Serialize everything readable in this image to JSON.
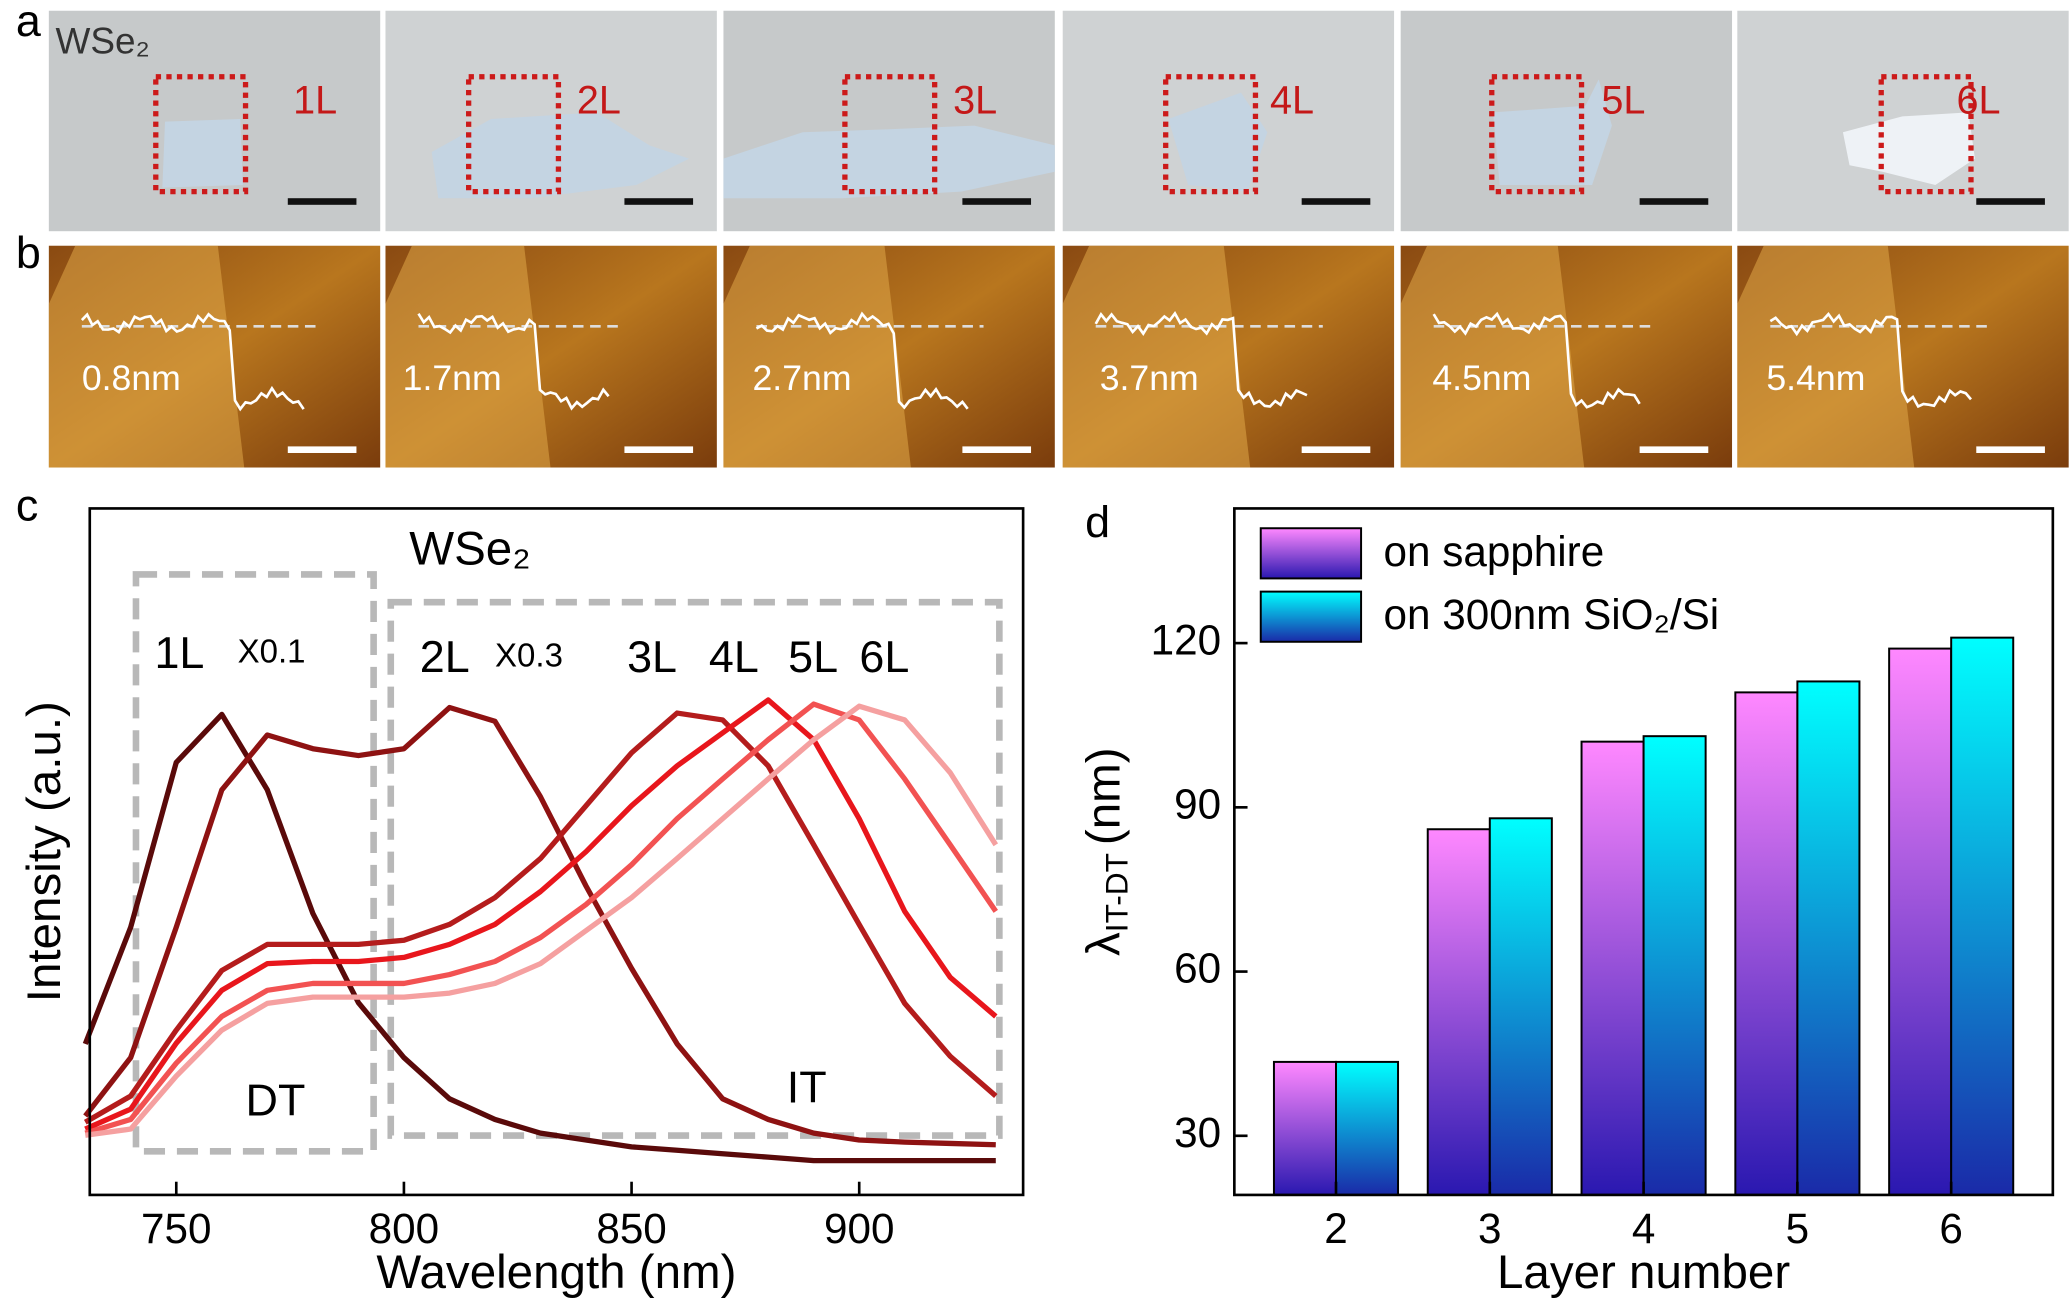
{
  "panel_labels": [
    "a",
    "b",
    "c",
    "d"
  ],
  "optical": {
    "material": "WSe₂",
    "layers": [
      "1L",
      "2L",
      "3L",
      "4L",
      "5L",
      "6L"
    ]
  },
  "afm": {
    "heights": [
      "0.8nm",
      "1.7nm",
      "2.7nm",
      "3.7nm",
      "4.5nm",
      "5.4nm"
    ]
  },
  "chart_data": [
    {
      "type": "line",
      "title": "WSe₂",
      "x_label": "Wavelength (nm)",
      "y_label": "Intensity (a.u.)",
      "x": [
        730,
        740,
        750,
        760,
        770,
        780,
        790,
        800,
        810,
        820,
        830,
        840,
        850,
        860,
        870,
        880,
        890,
        900,
        910,
        920,
        930
      ],
      "xlim": [
        731,
        936
      ],
      "xticks": [
        750,
        800,
        850,
        900
      ],
      "ylim": [
        0,
        1
      ],
      "series": [
        {
          "name": "1L",
          "color": "#5a0a0a",
          "values": [
            0.22,
            0.39,
            0.63,
            0.7,
            0.59,
            0.41,
            0.28,
            0.2,
            0.14,
            0.11,
            0.09,
            0.08,
            0.07,
            0.065,
            0.06,
            0.055,
            0.05,
            0.05,
            0.05,
            0.05,
            0.05
          ]
        },
        {
          "name": "2L",
          "color": "#8e1212",
          "values": [
            0.115,
            0.2,
            0.39,
            0.59,
            0.67,
            0.65,
            0.64,
            0.65,
            0.71,
            0.69,
            0.58,
            0.45,
            0.33,
            0.22,
            0.14,
            0.11,
            0.09,
            0.08,
            0.077,
            0.075,
            0.073
          ]
        },
        {
          "name": "3L",
          "color": "#b41c1c",
          "values": [
            0.106,
            0.144,
            0.24,
            0.327,
            0.365,
            0.365,
            0.365,
            0.371,
            0.394,
            0.433,
            0.49,
            0.567,
            0.644,
            0.702,
            0.692,
            0.625,
            0.51,
            0.394,
            0.279,
            0.202,
            0.144
          ]
        },
        {
          "name": "4L",
          "color": "#e8161c",
          "values": [
            0.096,
            0.125,
            0.221,
            0.298,
            0.337,
            0.34,
            0.34,
            0.346,
            0.365,
            0.394,
            0.442,
            0.5,
            0.567,
            0.625,
            0.673,
            0.721,
            0.663,
            0.548,
            0.413,
            0.317,
            0.26
          ]
        },
        {
          "name": "5L",
          "color": "#f25252",
          "values": [
            0.09,
            0.11,
            0.192,
            0.26,
            0.298,
            0.308,
            0.308,
            0.308,
            0.321,
            0.34,
            0.375,
            0.423,
            0.481,
            0.548,
            0.606,
            0.663,
            0.715,
            0.692,
            0.606,
            0.51,
            0.413
          ]
        },
        {
          "name": "6L",
          "color": "#f5a0a0",
          "values": [
            0.087,
            0.096,
            0.173,
            0.24,
            0.279,
            0.288,
            0.288,
            0.288,
            0.294,
            0.308,
            0.337,
            0.385,
            0.433,
            0.49,
            0.548,
            0.606,
            0.663,
            0.712,
            0.692,
            0.615,
            0.51
          ]
        }
      ],
      "annotations": {
        "scale_1L": "X0.1",
        "scale_2L": "X0.3",
        "dt": "DT",
        "it": "IT"
      }
    },
    {
      "type": "bar",
      "x_label": "Layer number",
      "y_label": "λ",
      "y_label_subscript": "IT-DT",
      "y_label_unit": "(nm)",
      "categories": [
        "2",
        "3",
        "4",
        "5",
        "6"
      ],
      "ylim": [
        19.2,
        144.6
      ],
      "yticks": [
        30,
        60,
        90,
        120
      ],
      "legend": "top-left",
      "series": [
        {
          "name": "on sapphire",
          "color": "#ff88ff",
          "gradient_to": "#2a18b0",
          "values": [
            43.5,
            86,
            102,
            111,
            119
          ]
        },
        {
          "name": "on 300nm SiO₂/Si",
          "color": "#00ffff",
          "gradient_to": "#1a2aa8",
          "values": [
            43.5,
            88,
            103,
            113,
            121
          ]
        }
      ]
    }
  ]
}
